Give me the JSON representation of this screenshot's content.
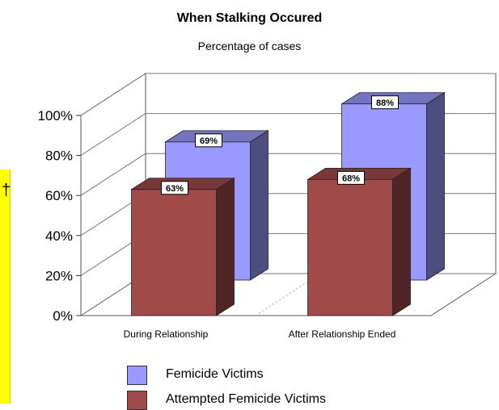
{
  "chart_data": {
    "type": "bar",
    "title": "When Stalking Occured",
    "subtitle": "Percentage of cases",
    "categories": [
      "During Relationship",
      "After Relationship Ended"
    ],
    "series": [
      {
        "name": "Femicide Victims",
        "values": [
          69,
          88
        ],
        "color": "#9999ff",
        "value_labels": [
          "69%",
          "88%"
        ]
      },
      {
        "name": "Attempted Femicide Victims",
        "values": [
          63,
          68
        ],
        "color": "#a04a4a",
        "value_labels": [
          "63%",
          "68%"
        ]
      }
    ],
    "y_ticks": [
      "0%",
      "20%",
      "40%",
      "60%",
      "80%",
      "100%"
    ],
    "ylim": [
      0,
      100
    ],
    "grid": true,
    "legend": "bottom",
    "three_d": true
  },
  "side_strip": {
    "mark": "†",
    "color": "#ffff00"
  }
}
